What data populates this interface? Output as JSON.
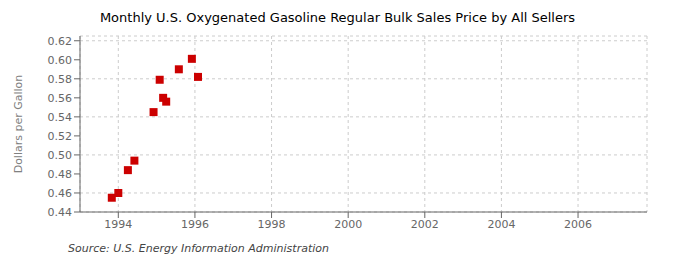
{
  "chart_data": {
    "type": "scatter",
    "title": "Monthly U.S. Oxygenated Gasoline Regular Bulk Sales Price by All Sellers",
    "ylabel": "Dollars per Gallon",
    "annotations": [
      "Source: U.S. Energy Information Administration"
    ],
    "x": [
      1993.83,
      1994.0,
      1994.25,
      1994.42,
      1994.92,
      1995.08,
      1995.17,
      1995.25,
      1995.58,
      1995.92,
      1996.08
    ],
    "values": [
      0.455,
      0.46,
      0.484,
      0.494,
      0.545,
      0.579,
      0.56,
      0.556,
      0.59,
      0.601,
      0.582
    ],
    "color": "#cc0000",
    "marker": "square",
    "xlim": [
      1993.0,
      2007.8
    ],
    "ylim": [
      0.44,
      0.625
    ],
    "xticks": [
      1994,
      1996,
      1998,
      2000,
      2002,
      2004,
      2006
    ],
    "yticks": [
      0.44,
      0.46,
      0.48,
      {
        "value": 0.5,
        "label": "0.50"
      },
      0.52,
      0.54,
      0.56,
      0.58,
      {
        "value": 0.6,
        "label": "0.60"
      },
      0.62
    ],
    "grid": true
  }
}
